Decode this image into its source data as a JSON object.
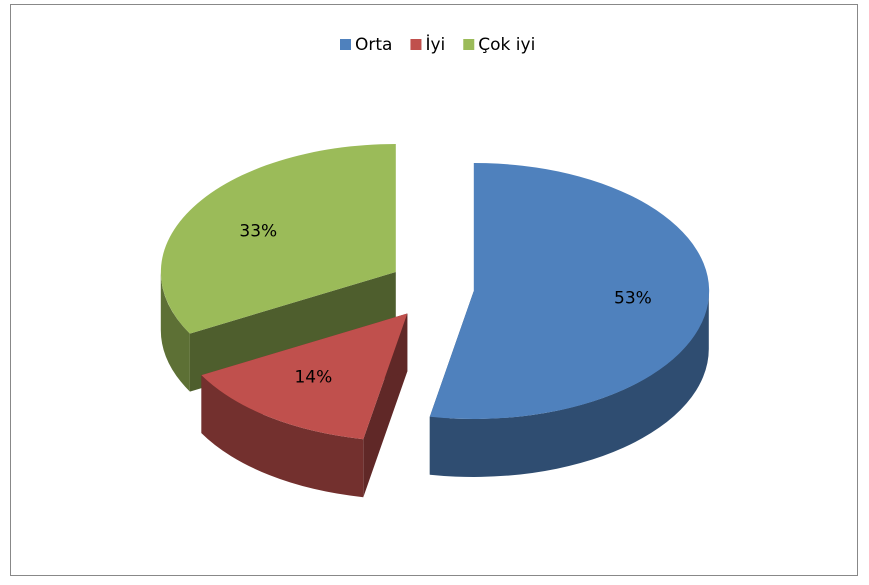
{
  "chart_data": {
    "type": "pie",
    "categories": [
      "Orta",
      "İyi",
      "Çok iyi"
    ],
    "values": [
      53,
      14,
      33
    ],
    "value_labels": [
      "53%",
      "14%",
      "33%"
    ],
    "colors": [
      "#4f81bd",
      "#c0504d",
      "#9bbb59"
    ],
    "legend": "top"
  }
}
